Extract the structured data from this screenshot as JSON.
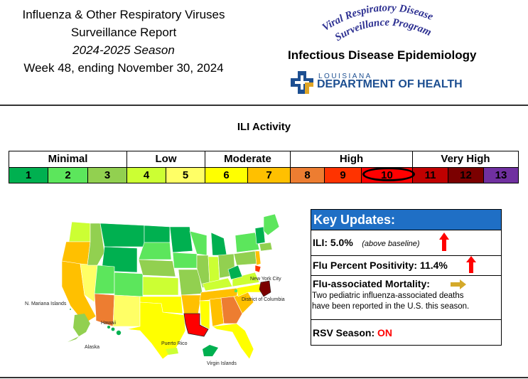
{
  "header": {
    "title_line1": "Influenza & Other Respiratory Viruses",
    "title_line2": "Surveillance Report",
    "season": "2024-2025 Season",
    "week": "Week 48, ending November 30, 2024",
    "program_arc_line1": "Viral Respiratory Disease",
    "program_arc_line2": "Surveillance Program",
    "section": "Infectious Disease Epidemiology",
    "dept_small": "LOUISIANA",
    "dept_name": "DEPARTMENT OF HEALTH"
  },
  "ili_scale": {
    "title": "ILI Activity",
    "categories": [
      "Minimal",
      "Low",
      "Moderate",
      "High",
      "Very High"
    ],
    "levels": [
      "1",
      "2",
      "3",
      "4",
      "5",
      "6",
      "7",
      "8",
      "9",
      "10",
      "11",
      "12",
      "13"
    ],
    "level_colors": [
      "#00b050",
      "#5ce65c",
      "#92d050",
      "#ccff33",
      "#ffff66",
      "#ffff00",
      "#ffc000",
      "#ed7d31",
      "#ff3300",
      "#ff0000",
      "#c00000",
      "#7b0000",
      "#7030a0"
    ],
    "current_level": 10
  },
  "map": {
    "labels": {
      "mariana": "N. Mariana Islands",
      "hawaii": "Hawaii",
      "alaska": "Alaska",
      "puerto_rico": "Puerto Rico",
      "virgin_islands": "Virgin Islands",
      "new_york_city": "New York City",
      "dc": "District of Columbia"
    }
  },
  "key_updates": {
    "title": "Key Updates:",
    "ili_label": "ILI: 5.0%",
    "ili_note": "(above baseline)",
    "ili_trend_icon": "up-arrow-icon",
    "flu_pos_label": "Flu Percent Positivity: 11.4%",
    "flu_pos_trend_icon": "up-arrow-icon",
    "mortality_label": "Flu-associated Mortality:",
    "mortality_trend_icon": "right-arrow-icon",
    "mortality_line1": "Two pediatric influenza-associated deaths",
    "mortality_line2": "have been reported in the U.S. this season.",
    "rsv_label": "RSV Season:",
    "rsv_value": "ON"
  },
  "colors": {
    "up_arrow": "#ff0000",
    "right_arrow": "#d4a92a",
    "header_blue": "#1f6fc5",
    "ldh_blue": "#1d4f91",
    "ldh_gold": "#e0a526"
  }
}
